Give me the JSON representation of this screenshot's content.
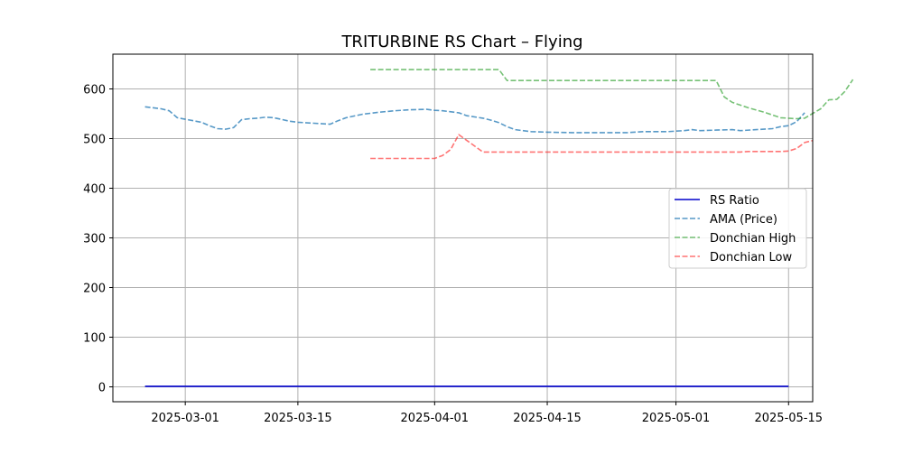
{
  "chart_data": {
    "type": "line",
    "title": "TRITURBINE RS Chart – Flying",
    "xlabel": "",
    "ylabel": "",
    "grid": true,
    "legend_position": "center-right",
    "x_axis": {
      "type": "date",
      "range": [
        "2025-02-20",
        "2025-05-18"
      ],
      "ticks": [
        {
          "value": "2025-03-01",
          "label": "2025-03-01"
        },
        {
          "value": "2025-03-15",
          "label": "2025-03-15"
        },
        {
          "value": "2025-04-01",
          "label": "2025-04-01"
        },
        {
          "value": "2025-04-15",
          "label": "2025-04-15"
        },
        {
          "value": "2025-05-01",
          "label": "2025-05-01"
        },
        {
          "value": "2025-05-15",
          "label": "2025-05-15"
        }
      ]
    },
    "y_axis": {
      "range": [
        -30,
        670
      ],
      "ticks": [
        {
          "value": 0,
          "label": "0"
        },
        {
          "value": 100,
          "label": "100"
        },
        {
          "value": 200,
          "label": "200"
        },
        {
          "value": 300,
          "label": "300"
        },
        {
          "value": 400,
          "label": "400"
        },
        {
          "value": 500,
          "label": "500"
        },
        {
          "value": 600,
          "label": "600"
        }
      ]
    },
    "series": [
      {
        "name": "RS Ratio",
        "color": "#0000cc",
        "style": "solid",
        "opacity": 1,
        "points": [
          [
            "2025-02-24",
            1
          ],
          [
            "2025-05-15",
            1
          ]
        ]
      },
      {
        "name": "AMA (Price)",
        "color": "#1f77b4",
        "style": "dashed",
        "opacity": 0.75,
        "points": [
          [
            "2025-02-24",
            564
          ],
          [
            "2025-02-26",
            560
          ],
          [
            "2025-02-27",
            556
          ],
          [
            "2025-02-28",
            542
          ],
          [
            "2025-03-03",
            533
          ],
          [
            "2025-03-04",
            526
          ],
          [
            "2025-03-05",
            520
          ],
          [
            "2025-03-06",
            519
          ],
          [
            "2025-03-07",
            522
          ],
          [
            "2025-03-08",
            538
          ],
          [
            "2025-03-09",
            540
          ],
          [
            "2025-03-10",
            541
          ],
          [
            "2025-03-11",
            543
          ],
          [
            "2025-03-12",
            542
          ],
          [
            "2025-03-14",
            535
          ],
          [
            "2025-03-15",
            533
          ],
          [
            "2025-03-17",
            531
          ],
          [
            "2025-03-19",
            529
          ],
          [
            "2025-03-20",
            536
          ],
          [
            "2025-03-21",
            542
          ],
          [
            "2025-03-23",
            549
          ],
          [
            "2025-03-25",
            553
          ],
          [
            "2025-03-27",
            556
          ],
          [
            "2025-03-29",
            558
          ],
          [
            "2025-03-31",
            559
          ],
          [
            "2025-04-01",
            557
          ],
          [
            "2025-04-02",
            556
          ],
          [
            "2025-04-04",
            552
          ],
          [
            "2025-04-05",
            546
          ],
          [
            "2025-04-07",
            541
          ],
          [
            "2025-04-08",
            537
          ],
          [
            "2025-04-09",
            532
          ],
          [
            "2025-04-10",
            524
          ],
          [
            "2025-04-11",
            518
          ],
          [
            "2025-04-13",
            514
          ],
          [
            "2025-04-15",
            513
          ],
          [
            "2025-04-18",
            512
          ],
          [
            "2025-04-21",
            512
          ],
          [
            "2025-04-25",
            512
          ],
          [
            "2025-04-27",
            514
          ],
          [
            "2025-04-30",
            514
          ],
          [
            "2025-05-02",
            516
          ],
          [
            "2025-05-03",
            518
          ],
          [
            "2025-05-04",
            516
          ],
          [
            "2025-05-06",
            517
          ],
          [
            "2025-05-08",
            518
          ],
          [
            "2025-05-09",
            516
          ],
          [
            "2025-05-11",
            518
          ],
          [
            "2025-05-13",
            520
          ],
          [
            "2025-05-14",
            524
          ],
          [
            "2025-05-15",
            526
          ],
          [
            "2025-05-16",
            534
          ],
          [
            "2025-05-17",
            552
          ]
        ]
      },
      {
        "name": "Donchian High",
        "color": "#2ca02c",
        "style": "dashed",
        "opacity": 0.65,
        "points": [
          [
            "2025-03-24",
            639
          ],
          [
            "2025-04-09",
            639
          ],
          [
            "2025-04-10",
            617
          ],
          [
            "2025-05-06",
            617
          ],
          [
            "2025-05-07",
            584
          ],
          [
            "2025-05-08",
            573
          ],
          [
            "2025-05-10",
            562
          ],
          [
            "2025-05-12",
            553
          ],
          [
            "2025-05-14",
            542
          ],
          [
            "2025-05-16",
            540
          ],
          [
            "2025-05-17",
            541
          ],
          [
            "2025-05-19",
            560
          ],
          [
            "2025-05-20",
            578
          ],
          [
            "2025-05-21",
            579
          ],
          [
            "2025-05-22",
            595
          ],
          [
            "2025-05-23",
            619
          ]
        ]
      },
      {
        "name": "Donchian Low",
        "color": "#ff2a2a",
        "style": "dashed",
        "opacity": 0.65,
        "points": [
          [
            "2025-03-24",
            460
          ],
          [
            "2025-04-01",
            460
          ],
          [
            "2025-04-02",
            466
          ],
          [
            "2025-04-03",
            478
          ],
          [
            "2025-04-04",
            508
          ],
          [
            "2025-04-07",
            473
          ],
          [
            "2025-04-24",
            473
          ],
          [
            "2025-05-06",
            473
          ],
          [
            "2025-05-09",
            473
          ],
          [
            "2025-05-10",
            474
          ],
          [
            "2025-05-14",
            474
          ],
          [
            "2025-05-15",
            475
          ],
          [
            "2025-05-16",
            480
          ],
          [
            "2025-05-17",
            492
          ],
          [
            "2025-05-18",
            496
          ]
        ]
      }
    ]
  }
}
